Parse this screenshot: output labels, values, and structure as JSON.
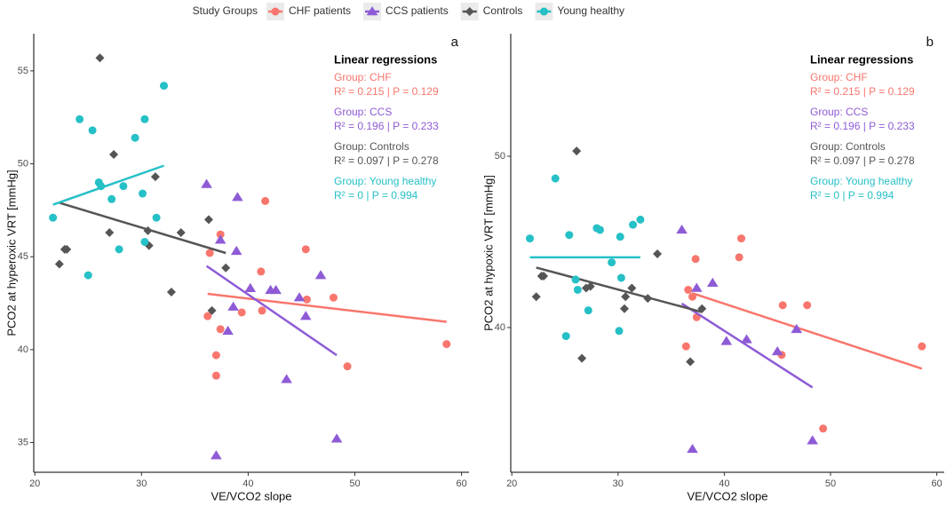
{
  "legend_title": "Study Groups",
  "chart_data": [
    {
      "type": "scatter",
      "panel_label": "a",
      "xlabel": "VE/VCO2 slope",
      "ylabel": "PCO2 at hyperoxic VRT [mmHg]",
      "xlim": [
        19.9,
        60.7
      ],
      "ylim": [
        33.4,
        57.0
      ],
      "xticks": [
        20,
        30,
        40,
        50,
        60
      ],
      "yticks": [
        35,
        40,
        45,
        50,
        55
      ],
      "annotation_title": "Linear regressions",
      "series": [
        {
          "name": "CHF patients",
          "color": "#f8766d",
          "marker": "circle",
          "x": [
            36.2,
            36.4,
            37.0,
            37.0,
            37.4,
            37.4,
            39.4,
            41.2,
            41.3,
            41.6,
            45.4,
            45.5,
            48.0,
            49.3,
            58.6
          ],
          "values": [
            41.8,
            45.2,
            39.7,
            38.6,
            46.2,
            41.1,
            42.0,
            44.2,
            42.1,
            48.0,
            45.4,
            42.7,
            42.8,
            39.1,
            40.3
          ],
          "fit": {
            "x": [
              36.2,
              58.6
            ],
            "y": [
              43.0,
              41.5
            ]
          },
          "group_label": "Group: CHF",
          "stats": "R² =  0.215  | P =  0.129"
        },
        {
          "name": "CCS patients",
          "color": "#8e5bd6",
          "marker": "triangle",
          "x": [
            36.1,
            37.0,
            37.4,
            38.1,
            38.6,
            38.9,
            39.0,
            40.2,
            42.1,
            42.6,
            43.6,
            44.8,
            45.4,
            46.8,
            48.3
          ],
          "values": [
            48.9,
            34.3,
            45.9,
            41.0,
            42.3,
            45.3,
            48.2,
            43.3,
            43.2,
            43.2,
            38.4,
            42.8,
            41.8,
            44.0,
            35.2
          ],
          "fit": {
            "x": [
              36.1,
              48.3
            ],
            "y": [
              44.5,
              39.7
            ]
          },
          "group_label": "Group: CCS",
          "stats": "R² =  0.196  | P =  0.233"
        },
        {
          "name": "Controls",
          "color": "#555555",
          "marker": "diamond",
          "x": [
            22.3,
            22.8,
            23.0,
            26.1,
            27.0,
            27.4,
            30.6,
            30.7,
            31.3,
            32.8,
            33.7,
            36.3,
            36.6,
            37.9
          ],
          "values": [
            44.6,
            45.4,
            45.4,
            55.7,
            46.3,
            50.5,
            46.4,
            45.6,
            49.3,
            43.1,
            46.3,
            47.0,
            42.1,
            44.4
          ],
          "fit": {
            "x": [
              22.3,
              37.9
            ],
            "y": [
              47.9,
              45.2
            ]
          },
          "group_label": "Group: Controls",
          "stats": "R² =  0.097  | P =  0.278"
        },
        {
          "name": "Young healthy",
          "color": "#26c0c7",
          "marker": "circle",
          "x": [
            21.7,
            24.2,
            25.0,
            25.4,
            26.0,
            26.2,
            27.2,
            27.9,
            28.3,
            29.4,
            30.1,
            30.3,
            30.3,
            31.4,
            32.1
          ],
          "values": [
            47.1,
            52.4,
            44.0,
            51.8,
            49.0,
            48.8,
            48.1,
            45.4,
            48.8,
            51.4,
            48.4,
            52.4,
            45.8,
            47.1,
            54.2
          ],
          "fit": {
            "x": [
              21.7,
              32.1
            ],
            "y": [
              47.8,
              49.9
            ]
          },
          "group_label": "Group: Young healthy",
          "stats": "R² =  0  | P =  0.994"
        }
      ]
    },
    {
      "type": "scatter",
      "panel_label": "b",
      "xlabel": "VE/VCO2 slope",
      "ylabel": "PCO2 at hypoxic VRT [mmHg]",
      "xlim": [
        19.9,
        60.7
      ],
      "ylim": [
        31.55,
        57.15
      ],
      "xticks": [
        20,
        30,
        40,
        50,
        60
      ],
      "yticks": [
        40,
        50
      ],
      "annotation_title": "Linear regressions",
      "series": [
        {
          "name": "CHF patients",
          "color": "#f8766d",
          "marker": "circle",
          "x": [
            36.4,
            36.6,
            37.0,
            37.3,
            37.4,
            41.4,
            41.6,
            45.4,
            45.5,
            47.8,
            49.3,
            58.6
          ],
          "values": [
            38.9,
            42.2,
            41.8,
            44.0,
            40.6,
            44.1,
            45.2,
            38.4,
            41.3,
            41.3,
            34.1,
            38.9
          ],
          "fit": {
            "x": [
              37.0,
              58.6
            ],
            "y": [
              42.0,
              37.6
            ]
          },
          "group_label": "Group: CHF",
          "stats": "R² =  0.215  | P =  0.129"
        },
        {
          "name": "CCS patients",
          "color": "#8e5bd6",
          "marker": "triangle",
          "x": [
            36.0,
            37.0,
            37.4,
            38.9,
            40.2,
            42.1,
            45.0,
            46.8,
            48.3
          ],
          "values": [
            45.7,
            32.9,
            42.3,
            42.6,
            39.2,
            39.3,
            38.6,
            39.9,
            33.4
          ],
          "fit": {
            "x": [
              36.0,
              48.3
            ],
            "y": [
              41.4,
              36.5
            ]
          },
          "group_label": "Group: CCS",
          "stats": "R² =  0.196  | P =  0.233"
        },
        {
          "name": "Controls",
          "color": "#555555",
          "marker": "diamond",
          "x": [
            22.3,
            22.8,
            23.0,
            26.1,
            26.6,
            27.0,
            27.4,
            30.6,
            30.7,
            31.3,
            32.8,
            33.7,
            36.8,
            37.9
          ],
          "values": [
            41.8,
            43.0,
            43.0,
            50.3,
            38.2,
            42.3,
            42.4,
            41.1,
            41.8,
            42.3,
            41.7,
            44.3,
            38.0,
            41.1
          ],
          "fit": {
            "x": [
              22.3,
              37.9
            ],
            "y": [
              43.5,
              40.9
            ]
          },
          "group_label": "Group: Controls",
          "stats": "R² =  0.097  | P =  0.278"
        },
        {
          "name": "Young healthy",
          "color": "#26c0c7",
          "marker": "circle",
          "x": [
            21.7,
            24.1,
            25.1,
            25.4,
            26.0,
            26.2,
            27.2,
            28.0,
            28.3,
            29.4,
            30.1,
            30.2,
            30.3,
            31.4,
            32.1
          ],
          "values": [
            45.2,
            48.7,
            39.5,
            45.4,
            42.8,
            42.2,
            41.0,
            45.8,
            45.7,
            43.8,
            39.8,
            45.3,
            42.9,
            46.0,
            46.3
          ],
          "fit": {
            "x": [
              21.7,
              32.1
            ],
            "y": [
              44.1,
              44.1
            ]
          },
          "group_label": "Group: Young healthy",
          "stats": "R² =  0  | P =  0.994"
        }
      ]
    }
  ]
}
